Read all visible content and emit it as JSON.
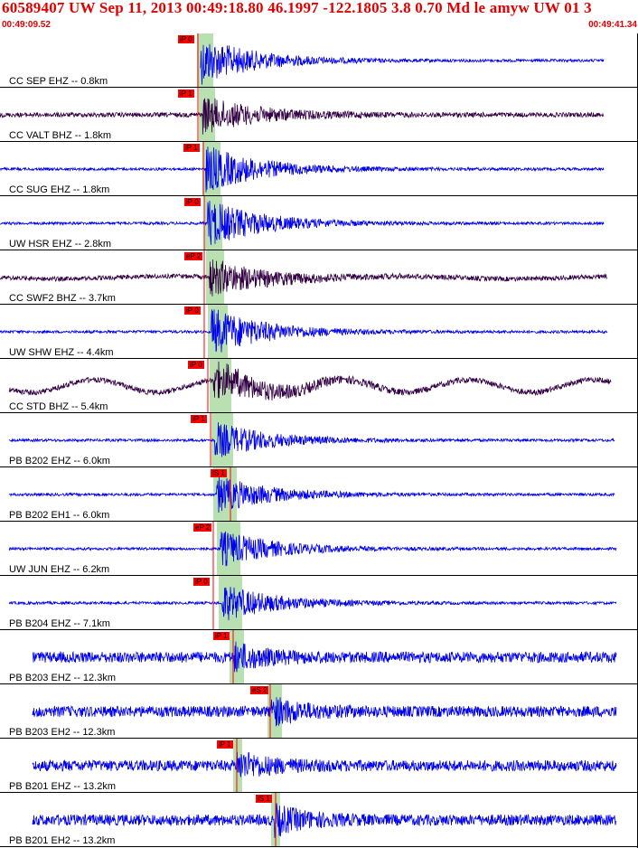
{
  "header": {
    "title": "60589407 UW Sep 11, 2013 00:49:18.80   46.1997 -122.1805  3.8 0.70 Md le amyw UW 01   3",
    "start_time": "00:49:09.52",
    "end_time": "00:49:41.34"
  },
  "colors": {
    "header_text": "#e00000",
    "trace_blue": "#0000ee",
    "trace_dark": "#330044",
    "pick_red": "#ff0000",
    "pick_window_green": "#b8e0b0",
    "separator": "#000000"
  },
  "traces": [
    {
      "label": "CC SEP EHZ -- 0.8km",
      "pick": "iP 0",
      "color": "blue",
      "amp": "large"
    },
    {
      "label": "CC VALT BHZ -- 1.8km",
      "pick": "iP 1",
      "color": "dark",
      "amp": "medium"
    },
    {
      "label": "CC SUG EHZ -- 1.8km",
      "pick": "iP 1",
      "color": "blue",
      "amp": "large"
    },
    {
      "label": "UW HSR EHZ -- 2.8km",
      "pick": "iP 0",
      "color": "blue",
      "amp": "large"
    },
    {
      "label": "CC SWF2 BHZ -- 3.7km",
      "pick": "eP 2",
      "color": "dark",
      "amp": "medium"
    },
    {
      "label": "UW SHW EHZ -- 4.4km",
      "pick": "iP 0",
      "color": "blue",
      "amp": "large"
    },
    {
      "label": "CC STD BHZ -- 5.4km",
      "pick": "iP 0",
      "color": "dark",
      "amp": "medium"
    },
    {
      "label": "PB B202 EHZ -- 6.0km",
      "pick": "iP 1",
      "color": "blue",
      "amp": "medium"
    },
    {
      "label": "PB B202 EH1 -- 6.0km",
      "pick": "iS 1",
      "color": "blue",
      "amp": "medium"
    },
    {
      "label": "UW JUN EHZ -- 6.2km",
      "pick": "eP 2",
      "color": "blue",
      "amp": "medium"
    },
    {
      "label": "PB B204 EHZ -- 7.1km",
      "pick": "iP 0",
      "color": "blue",
      "amp": "medium"
    },
    {
      "label": "PB B203 EHZ -- 12.3km",
      "pick": "iP 1",
      "color": "blue",
      "amp": "noisy"
    },
    {
      "label": "PB B203 EH2 -- 12.3km",
      "pick": "eS 2",
      "color": "blue",
      "amp": "noisy"
    },
    {
      "label": "PB B201 EHZ -- 13.2km",
      "pick": "iP 1",
      "color": "blue",
      "amp": "noisy"
    },
    {
      "label": "PB B201 EH2 -- 13.2km",
      "pick": "iS 1",
      "color": "blue",
      "amp": "noisy"
    }
  ]
}
